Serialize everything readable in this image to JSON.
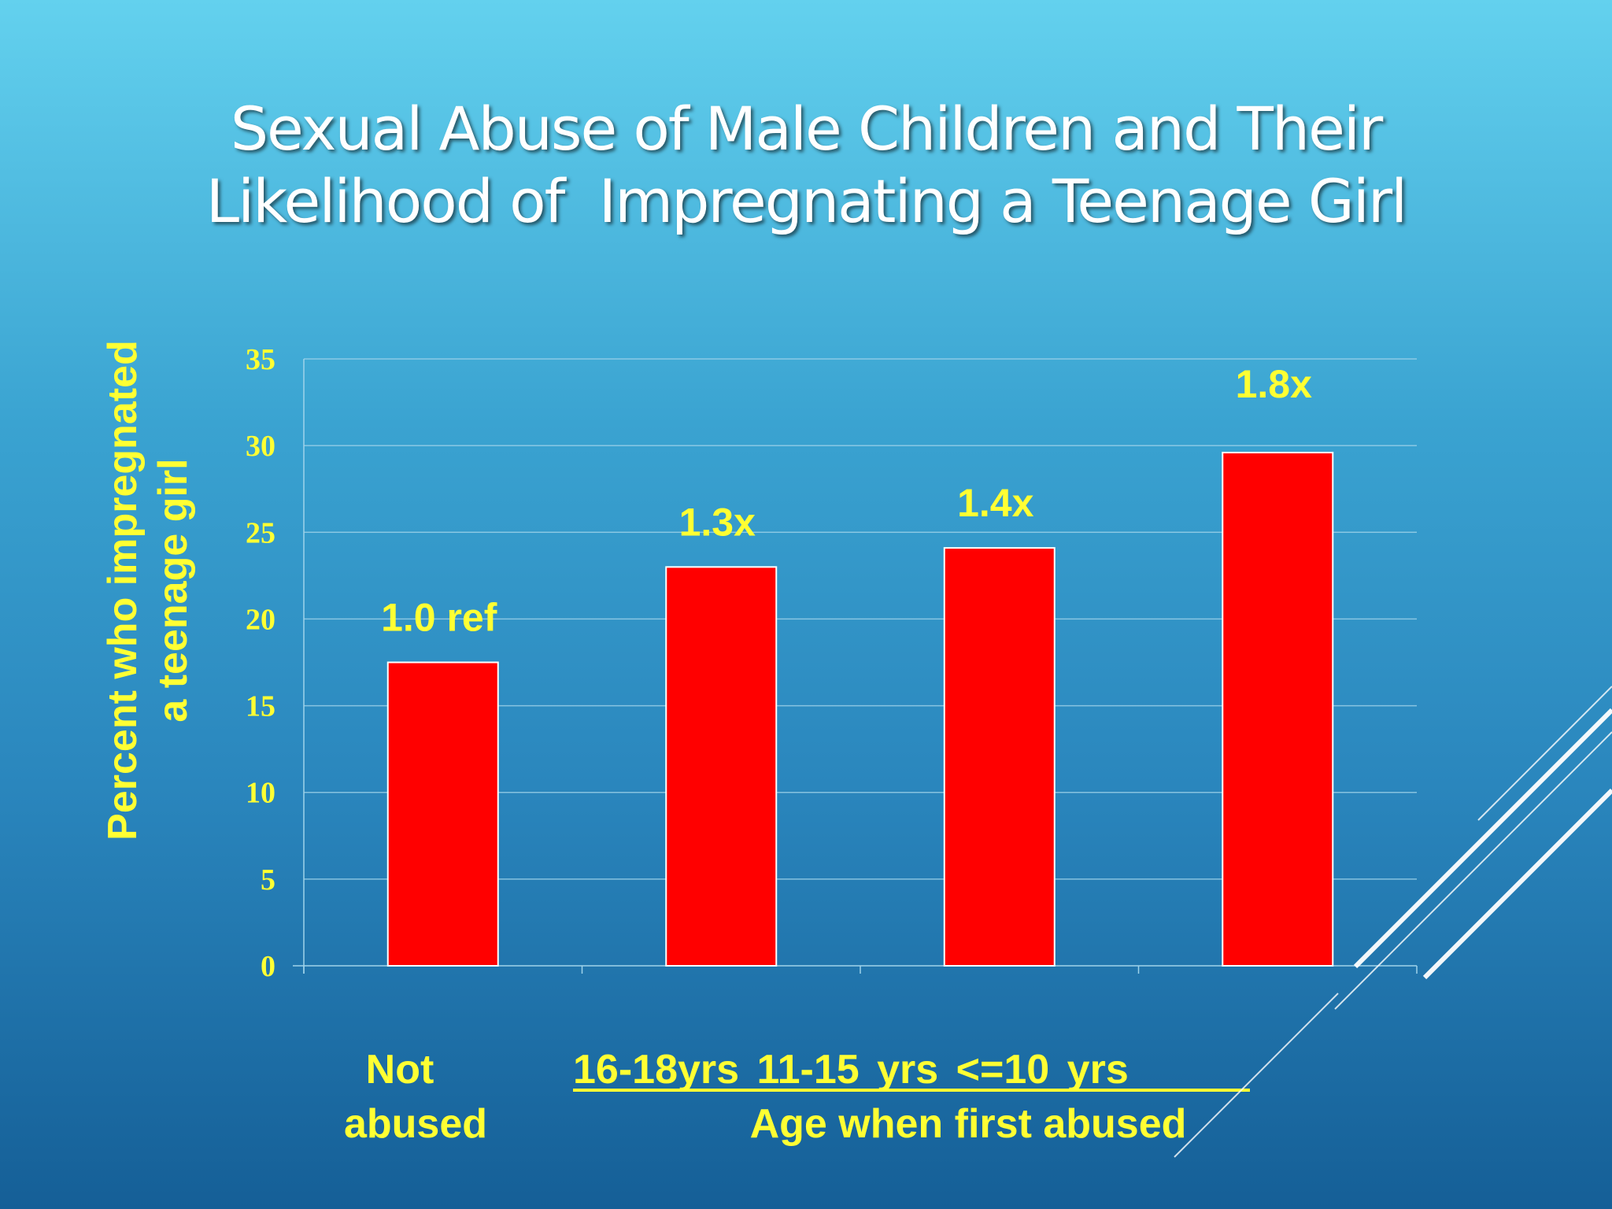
{
  "title": {
    "line1": "Sexual Abuse of Male Children and Their",
    "line2": "Likelihood of  Impregnating a Teenage Girl"
  },
  "colors": {
    "bar": "#ff0000",
    "bar_border": "#ffffff",
    "label": "#ffff33",
    "axis_tick_text": "#ffff33",
    "gridline": "#9fd3ea",
    "title": "#ffffff"
  },
  "chart_data": {
    "type": "bar",
    "title": "Sexual Abuse of Male Children and Their Likelihood of  Impregnating a Teenage Girl",
    "ylabel_line1": "Percent who impregnated",
    "ylabel_line2": "a teenage girl",
    "xlabel": "Age when first abused",
    "categories": [
      "Not abused",
      "16-18yrs",
      "11-15 yrs",
      "<=10 yrs"
    ],
    "values": [
      17.5,
      23.0,
      24.1,
      29.6
    ],
    "data_labels": [
      "1.0 ref",
      "1.3x",
      "1.4x",
      "1.8x"
    ],
    "ylim": [
      0,
      35
    ],
    "yticks": [
      "0",
      "5",
      "10",
      "15",
      "20",
      "25",
      "30",
      "35"
    ],
    "grid": true,
    "legend": "none"
  },
  "xaxis_labels": {
    "not": "Not",
    "abused": "abused",
    "g1": "16-18yrs",
    "g2": "11-15 yrs",
    "g3": "<=10 yrs",
    "age": "Age when first abused"
  }
}
